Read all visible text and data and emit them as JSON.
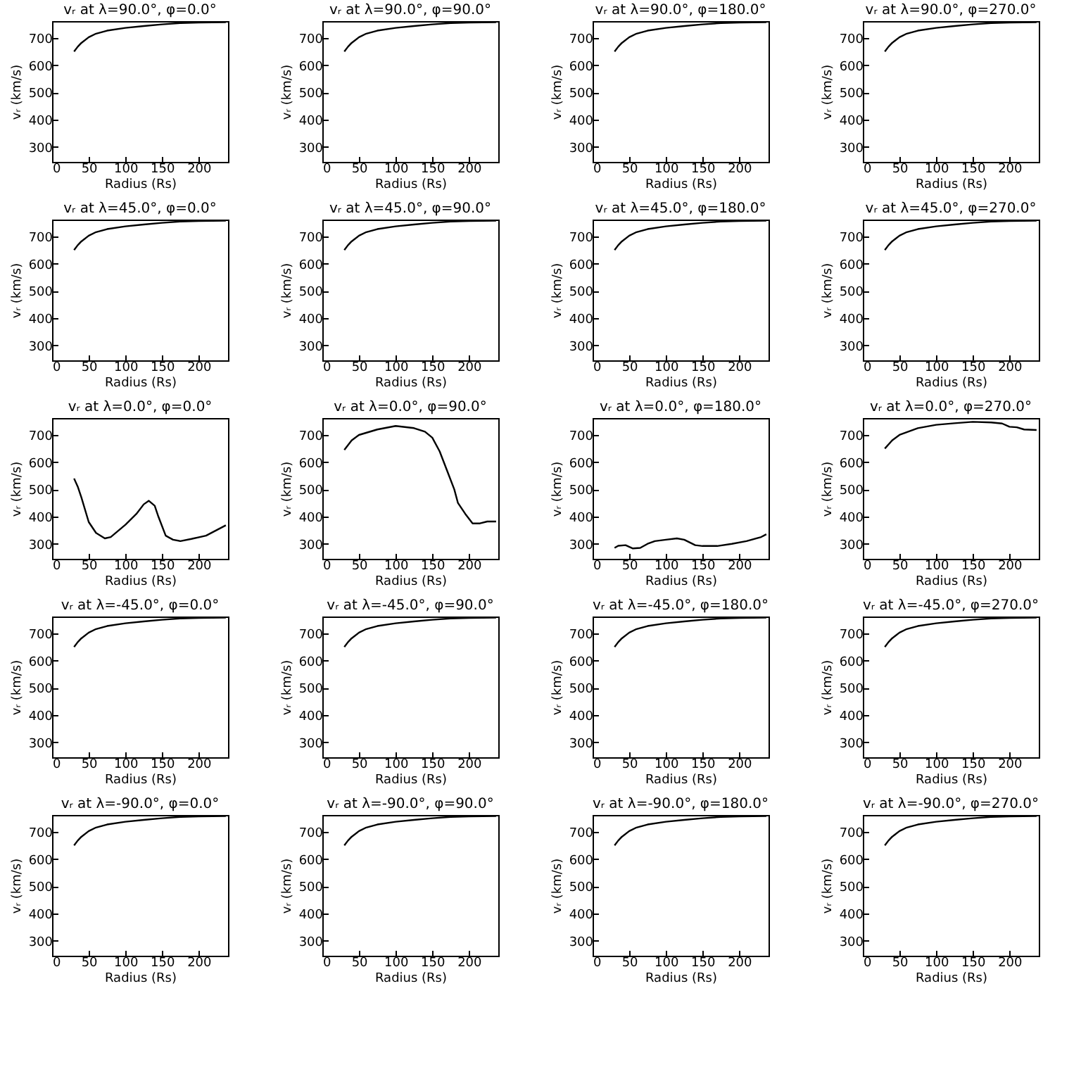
{
  "chart_data": [
    {
      "type": "line",
      "title": "vᵣ at λ=90.0°, φ=0.0°",
      "xlabel": "Radius (Rs)",
      "ylabel": "vᵣ (km/s)",
      "x": [
        30,
        35,
        40,
        50,
        60,
        75,
        100,
        125,
        150,
        175,
        200,
        237
      ],
      "xlim": [
        0,
        240
      ],
      "ylim": [
        245,
        762
      ],
      "xticks": [
        0,
        50,
        100,
        150,
        200
      ],
      "yticks": [
        300,
        400,
        500,
        600,
        700
      ],
      "series": [
        {
          "color": "#000000",
          "values": [
            650,
            668,
            682,
            703,
            716,
            727,
            737,
            744,
            750,
            755,
            757,
            758
          ]
        }
      ]
    },
    {
      "type": "line",
      "title": "vᵣ at λ=90.0°, φ=90.0°",
      "xlabel": "Radius (Rs)",
      "ylabel": "vᵣ (km/s)",
      "x": [
        30,
        35,
        40,
        50,
        60,
        75,
        100,
        125,
        150,
        175,
        200,
        237
      ],
      "xlim": [
        0,
        240
      ],
      "ylim": [
        245,
        762
      ],
      "xticks": [
        0,
        50,
        100,
        150,
        200
      ],
      "yticks": [
        300,
        400,
        500,
        600,
        700
      ],
      "series": [
        {
          "color": "#000000",
          "values": [
            650,
            668,
            682,
            703,
            716,
            727,
            737,
            744,
            750,
            755,
            757,
            758
          ]
        }
      ]
    },
    {
      "type": "line",
      "title": "vᵣ at λ=90.0°, φ=180.0°",
      "xlabel": "Radius (Rs)",
      "ylabel": "vᵣ (km/s)",
      "x": [
        30,
        35,
        40,
        50,
        60,
        75,
        100,
        125,
        150,
        175,
        200,
        237
      ],
      "xlim": [
        0,
        240
      ],
      "ylim": [
        245,
        762
      ],
      "xticks": [
        0,
        50,
        100,
        150,
        200
      ],
      "yticks": [
        300,
        400,
        500,
        600,
        700
      ],
      "series": [
        {
          "color": "#000000",
          "values": [
            650,
            668,
            682,
            703,
            716,
            727,
            737,
            744,
            750,
            755,
            757,
            758
          ]
        }
      ]
    },
    {
      "type": "line",
      "title": "vᵣ at λ=90.0°, φ=270.0°",
      "xlabel": "Radius (Rs)",
      "ylabel": "vᵣ (km/s)",
      "x": [
        30,
        35,
        40,
        50,
        60,
        75,
        100,
        125,
        150,
        175,
        200,
        237
      ],
      "xlim": [
        0,
        240
      ],
      "ylim": [
        245,
        762
      ],
      "xticks": [
        0,
        50,
        100,
        150,
        200
      ],
      "yticks": [
        300,
        400,
        500,
        600,
        700
      ],
      "series": [
        {
          "color": "#000000",
          "values": [
            650,
            668,
            682,
            703,
            716,
            727,
            737,
            744,
            750,
            755,
            757,
            758
          ]
        }
      ]
    },
    {
      "type": "line",
      "title": "vᵣ at λ=45.0°, φ=0.0°",
      "xlabel": "Radius (Rs)",
      "ylabel": "vᵣ (km/s)",
      "x": [
        30,
        35,
        40,
        50,
        60,
        75,
        100,
        125,
        150,
        175,
        200,
        237
      ],
      "xlim": [
        0,
        240
      ],
      "ylim": [
        245,
        762
      ],
      "xticks": [
        0,
        50,
        100,
        150,
        200
      ],
      "yticks": [
        300,
        400,
        500,
        600,
        700
      ],
      "series": [
        {
          "color": "#000000",
          "values": [
            650,
            668,
            682,
            703,
            716,
            727,
            737,
            744,
            750,
            755,
            757,
            758
          ]
        }
      ]
    },
    {
      "type": "line",
      "title": "vᵣ at λ=45.0°, φ=90.0°",
      "xlabel": "Radius (Rs)",
      "ylabel": "vᵣ (km/s)",
      "x": [
        30,
        35,
        40,
        50,
        60,
        75,
        100,
        125,
        150,
        175,
        200,
        237
      ],
      "xlim": [
        0,
        240
      ],
      "ylim": [
        245,
        762
      ],
      "xticks": [
        0,
        50,
        100,
        150,
        200
      ],
      "yticks": [
        300,
        400,
        500,
        600,
        700
      ],
      "series": [
        {
          "color": "#000000",
          "values": [
            650,
            668,
            682,
            703,
            716,
            727,
            737,
            744,
            750,
            755,
            757,
            758
          ]
        }
      ]
    },
    {
      "type": "line",
      "title": "vᵣ at λ=45.0°, φ=180.0°",
      "xlabel": "Radius (Rs)",
      "ylabel": "vᵣ (km/s)",
      "x": [
        30,
        35,
        40,
        50,
        60,
        75,
        100,
        125,
        150,
        175,
        200,
        237
      ],
      "xlim": [
        0,
        240
      ],
      "ylim": [
        245,
        762
      ],
      "xticks": [
        0,
        50,
        100,
        150,
        200
      ],
      "yticks": [
        300,
        400,
        500,
        600,
        700
      ],
      "series": [
        {
          "color": "#000000",
          "values": [
            650,
            668,
            682,
            703,
            716,
            727,
            737,
            744,
            750,
            755,
            757,
            758
          ]
        }
      ]
    },
    {
      "type": "line",
      "title": "vᵣ at λ=45.0°, φ=270.0°",
      "xlabel": "Radius (Rs)",
      "ylabel": "vᵣ (km/s)",
      "x": [
        30,
        35,
        40,
        50,
        60,
        75,
        100,
        125,
        150,
        175,
        200,
        237
      ],
      "xlim": [
        0,
        240
      ],
      "ylim": [
        245,
        762
      ],
      "xticks": [
        0,
        50,
        100,
        150,
        200
      ],
      "yticks": [
        300,
        400,
        500,
        600,
        700
      ],
      "series": [
        {
          "color": "#000000",
          "values": [
            650,
            668,
            682,
            703,
            716,
            727,
            737,
            744,
            750,
            755,
            757,
            758
          ]
        }
      ]
    },
    {
      "type": "line",
      "title": "vᵣ at λ=0.0°, φ=0.0°",
      "xlabel": "Radius (Rs)",
      "ylabel": "vᵣ (km/s)",
      "x": [
        30,
        35,
        40,
        50,
        60,
        72,
        80,
        100,
        115,
        125,
        132,
        140,
        145,
        155,
        165,
        175,
        190,
        210,
        237
      ],
      "xlim": [
        0,
        240
      ],
      "ylim": [
        245,
        762
      ],
      "xticks": [
        0,
        50,
        100,
        150,
        200
      ],
      "yticks": [
        300,
        400,
        500,
        600,
        700
      ],
      "series": [
        {
          "color": "#000000",
          "values": [
            540,
            510,
            470,
            380,
            340,
            320,
            325,
            370,
            410,
            445,
            458,
            440,
            400,
            330,
            315,
            310,
            318,
            330,
            368
          ]
        }
      ]
    },
    {
      "type": "line",
      "title": "vᵣ at λ=0.0°, φ=90.0°",
      "xlabel": "Radius (Rs)",
      "ylabel": "vᵣ (km/s)",
      "x": [
        30,
        40,
        50,
        75,
        100,
        125,
        140,
        150,
        160,
        170,
        180,
        185,
        195,
        205,
        215,
        225,
        237
      ],
      "xlim": [
        0,
        240
      ],
      "ylim": [
        245,
        762
      ],
      "xticks": [
        0,
        50,
        100,
        150,
        200
      ],
      "yticks": [
        300,
        400,
        500,
        600,
        700
      ],
      "series": [
        {
          "color": "#000000",
          "values": [
            645,
            680,
            700,
            720,
            733,
            725,
            712,
            690,
            640,
            570,
            500,
            450,
            410,
            375,
            375,
            382,
            382
          ]
        }
      ]
    },
    {
      "type": "line",
      "title": "vᵣ at λ=0.0°, φ=180.0°",
      "xlabel": "Radius (Rs)",
      "ylabel": "vᵣ (km/s)",
      "x": [
        30,
        35,
        45,
        55,
        65,
        75,
        85,
        100,
        115,
        125,
        140,
        150,
        170,
        190,
        210,
        230,
        237
      ],
      "xlim": [
        0,
        240
      ],
      "ylim": [
        245,
        762
      ],
      "xticks": [
        0,
        50,
        100,
        150,
        200
      ],
      "yticks": [
        300,
        400,
        500,
        600,
        700
      ],
      "series": [
        {
          "color": "#000000",
          "values": [
            285,
            293,
            295,
            283,
            285,
            300,
            310,
            315,
            320,
            315,
            295,
            292,
            292,
            300,
            310,
            325,
            335
          ]
        }
      ]
    },
    {
      "type": "line",
      "title": "vᵣ at λ=0.0°, φ=270.0°",
      "xlabel": "Radius (Rs)",
      "ylabel": "vᵣ (km/s)",
      "x": [
        30,
        40,
        50,
        75,
        100,
        125,
        150,
        175,
        190,
        200,
        210,
        220,
        237
      ],
      "xlim": [
        0,
        240
      ],
      "ylim": [
        245,
        762
      ],
      "xticks": [
        0,
        50,
        100,
        150,
        200
      ],
      "yticks": [
        300,
        400,
        500,
        600,
        700
      ],
      "series": [
        {
          "color": "#000000",
          "values": [
            650,
            680,
            700,
            725,
            737,
            743,
            748,
            746,
            742,
            730,
            728,
            720,
            718
          ]
        }
      ]
    },
    {
      "type": "line",
      "title": "vᵣ at λ=-45.0°, φ=0.0°",
      "xlabel": "Radius (Rs)",
      "ylabel": "vᵣ (km/s)",
      "x": [
        30,
        35,
        40,
        50,
        60,
        75,
        100,
        125,
        150,
        175,
        200,
        237
      ],
      "xlim": [
        0,
        240
      ],
      "ylim": [
        245,
        762
      ],
      "xticks": [
        0,
        50,
        100,
        150,
        200
      ],
      "yticks": [
        300,
        400,
        500,
        600,
        700
      ],
      "series": [
        {
          "color": "#000000",
          "values": [
            650,
            668,
            682,
            703,
            716,
            727,
            737,
            744,
            750,
            755,
            757,
            758
          ]
        }
      ]
    },
    {
      "type": "line",
      "title": "vᵣ at λ=-45.0°, φ=90.0°",
      "xlabel": "Radius (Rs)",
      "ylabel": "vᵣ (km/s)",
      "x": [
        30,
        35,
        40,
        50,
        60,
        75,
        100,
        125,
        150,
        175,
        200,
        237
      ],
      "xlim": [
        0,
        240
      ],
      "ylim": [
        245,
        762
      ],
      "xticks": [
        0,
        50,
        100,
        150,
        200
      ],
      "yticks": [
        300,
        400,
        500,
        600,
        700
      ],
      "series": [
        {
          "color": "#000000",
          "values": [
            650,
            668,
            682,
            703,
            716,
            727,
            737,
            744,
            750,
            755,
            757,
            758
          ]
        }
      ]
    },
    {
      "type": "line",
      "title": "vᵣ at λ=-45.0°, φ=180.0°",
      "xlabel": "Radius (Rs)",
      "ylabel": "vᵣ (km/s)",
      "x": [
        30,
        35,
        40,
        50,
        60,
        75,
        100,
        125,
        150,
        175,
        200,
        237
      ],
      "xlim": [
        0,
        240
      ],
      "ylim": [
        245,
        762
      ],
      "xticks": [
        0,
        50,
        100,
        150,
        200
      ],
      "yticks": [
        300,
        400,
        500,
        600,
        700
      ],
      "series": [
        {
          "color": "#000000",
          "values": [
            650,
            668,
            682,
            703,
            716,
            727,
            737,
            744,
            750,
            755,
            757,
            758
          ]
        }
      ]
    },
    {
      "type": "line",
      "title": "vᵣ at λ=-45.0°, φ=270.0°",
      "xlabel": "Radius (Rs)",
      "ylabel": "vᵣ (km/s)",
      "x": [
        30,
        35,
        40,
        50,
        60,
        75,
        100,
        125,
        150,
        175,
        200,
        237
      ],
      "xlim": [
        0,
        240
      ],
      "ylim": [
        245,
        762
      ],
      "xticks": [
        0,
        50,
        100,
        150,
        200
      ],
      "yticks": [
        300,
        400,
        500,
        600,
        700
      ],
      "series": [
        {
          "color": "#000000",
          "values": [
            650,
            668,
            682,
            703,
            716,
            727,
            737,
            744,
            750,
            755,
            757,
            758
          ]
        }
      ]
    },
    {
      "type": "line",
      "title": "vᵣ at λ=-90.0°, φ=0.0°",
      "xlabel": "Radius (Rs)",
      "ylabel": "vᵣ (km/s)",
      "x": [
        30,
        35,
        40,
        50,
        60,
        75,
        100,
        125,
        150,
        175,
        200,
        237
      ],
      "xlim": [
        0,
        240
      ],
      "ylim": [
        245,
        762
      ],
      "xticks": [
        0,
        50,
        100,
        150,
        200
      ],
      "yticks": [
        300,
        400,
        500,
        600,
        700
      ],
      "series": [
        {
          "color": "#000000",
          "values": [
            650,
            668,
            682,
            703,
            716,
            727,
            737,
            744,
            750,
            755,
            757,
            758
          ]
        }
      ]
    },
    {
      "type": "line",
      "title": "vᵣ at λ=-90.0°, φ=90.0°",
      "xlabel": "Radius (Rs)",
      "ylabel": "vᵣ (km/s)",
      "x": [
        30,
        35,
        40,
        50,
        60,
        75,
        100,
        125,
        150,
        175,
        200,
        237
      ],
      "xlim": [
        0,
        240
      ],
      "ylim": [
        245,
        762
      ],
      "xticks": [
        0,
        50,
        100,
        150,
        200
      ],
      "yticks": [
        300,
        400,
        500,
        600,
        700
      ],
      "series": [
        {
          "color": "#000000",
          "values": [
            650,
            668,
            682,
            703,
            716,
            727,
            737,
            744,
            750,
            755,
            757,
            758
          ]
        }
      ]
    },
    {
      "type": "line",
      "title": "vᵣ at λ=-90.0°, φ=180.0°",
      "xlabel": "Radius (Rs)",
      "ylabel": "vᵣ (km/s)",
      "x": [
        30,
        35,
        40,
        50,
        60,
        75,
        100,
        125,
        150,
        175,
        200,
        237
      ],
      "xlim": [
        0,
        240
      ],
      "ylim": [
        245,
        762
      ],
      "xticks": [
        0,
        50,
        100,
        150,
        200
      ],
      "yticks": [
        300,
        400,
        500,
        600,
        700
      ],
      "series": [
        {
          "color": "#000000",
          "values": [
            650,
            668,
            682,
            703,
            716,
            727,
            737,
            744,
            750,
            755,
            757,
            758
          ]
        }
      ]
    },
    {
      "type": "line",
      "title": "vᵣ at λ=-90.0°, φ=270.0°",
      "xlabel": "Radius (Rs)",
      "ylabel": "vᵣ (km/s)",
      "x": [
        30,
        35,
        40,
        50,
        60,
        75,
        100,
        125,
        150,
        175,
        200,
        237
      ],
      "xlim": [
        0,
        240
      ],
      "ylim": [
        245,
        762
      ],
      "xticks": [
        0,
        50,
        100,
        150,
        200
      ],
      "yticks": [
        300,
        400,
        500,
        600,
        700
      ],
      "series": [
        {
          "color": "#000000",
          "values": [
            650,
            668,
            682,
            703,
            716,
            727,
            737,
            744,
            750,
            755,
            757,
            758
          ]
        }
      ]
    }
  ]
}
